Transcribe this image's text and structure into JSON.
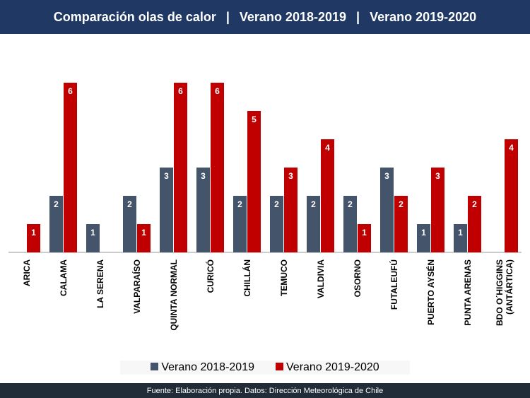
{
  "header": {
    "title": "Comparación olas de calor",
    "sep": "|",
    "s1": "Verano 2018-2019",
    "s2": "Verano 2019-2020"
  },
  "footer": "Fuente: Elaboración propia. Datos: Dirección Meteorológica de Chile",
  "chart_data": {
    "type": "bar",
    "title": "Comparación olas de calor | Verano 2018-2019 | Verano 2019-2020",
    "categories": [
      "ARICA",
      "CALAMA",
      "LA SERENA",
      "VALPARAÍSO",
      "QUINTA NORMAL",
      "CURICÓ",
      "CHILLÁN",
      "TEMUCO",
      "VALDIVIA",
      "OSORNO",
      "FUTALEUFÚ",
      "PUERTO AYSÉN",
      "PUNTA ARENAS",
      "BDO O´HIGGINS (ANTÁRTICA)"
    ],
    "series": [
      {
        "name": "Verano 2018-2019",
        "color": "#44546a",
        "values": [
          0,
          2,
          1,
          2,
          3,
          3,
          2,
          2,
          2,
          2,
          3,
          1,
          1,
          0
        ]
      },
      {
        "name": "Verano 2019-2020",
        "color": "#c00000",
        "values": [
          1,
          6,
          0,
          1,
          6,
          6,
          5,
          3,
          4,
          1,
          2,
          3,
          2,
          4
        ]
      }
    ],
    "ylim": [
      0,
      6.2
    ],
    "grid": false,
    "legend": "bottom"
  }
}
